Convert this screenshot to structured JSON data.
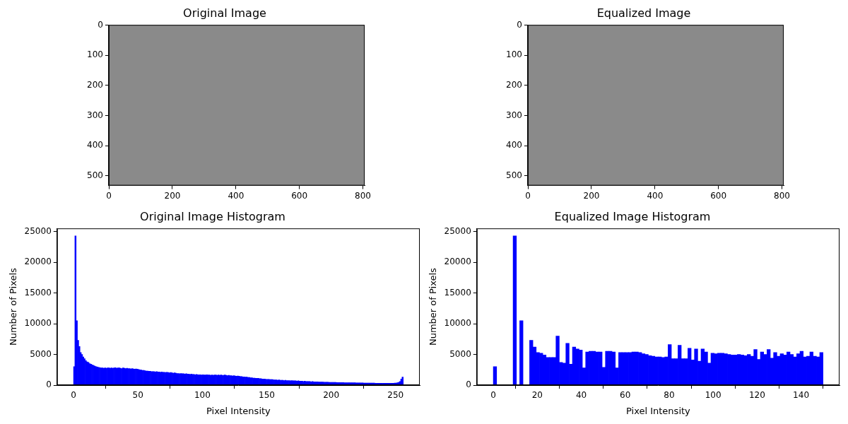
{
  "chart_data": [
    {
      "type": "image",
      "title": "Original Image",
      "xlim": [
        -0.5,
        805.5
      ],
      "xticks": [
        0,
        200,
        400,
        600,
        800
      ],
      "ylim": [
        532.5,
        -0.5
      ],
      "yticks": [
        0,
        100,
        200,
        300,
        400,
        500
      ],
      "grid": false
    },
    {
      "type": "image",
      "title": "Equalized Image",
      "xlim": [
        -0.5,
        805.5
      ],
      "xticks": [
        0,
        200,
        400,
        600,
        800
      ],
      "ylim": [
        532.5,
        -0.5
      ],
      "yticks": [
        0,
        100,
        200,
        300,
        400,
        500
      ],
      "grid": false
    },
    {
      "type": "histogram",
      "title": "Original Image Histogram",
      "x_label": "Pixel Intensity",
      "y_label": "Number of Pixels",
      "color": "#0000ff",
      "grid": false,
      "xlim": [
        -12.8,
        268.8
      ],
      "xticks": [
        0,
        50,
        100,
        150,
        200,
        250
      ],
      "ylim": [
        0,
        25515
      ],
      "yticks": [
        0,
        5000,
        10000,
        15000,
        20000,
        25000
      ],
      "bins": [
        0,
        1,
        2,
        3,
        4,
        5,
        6,
        7,
        8,
        9,
        10,
        11,
        12,
        13,
        14,
        15,
        16,
        17,
        18,
        19,
        20,
        21,
        22,
        23,
        24,
        25,
        26,
        27,
        28,
        29,
        30,
        31,
        32,
        33,
        34,
        35,
        36,
        37,
        38,
        39,
        40,
        41,
        42,
        43,
        44,
        45,
        46,
        47,
        48,
        49,
        50,
        51,
        52,
        53,
        54,
        55,
        56,
        57,
        58,
        59,
        60,
        61,
        62,
        63,
        64,
        65,
        66,
        67,
        68,
        69,
        70,
        71,
        72,
        73,
        74,
        75,
        76,
        77,
        78,
        79,
        80,
        81,
        82,
        83,
        84,
        85,
        86,
        87,
        88,
        89,
        90,
        91,
        92,
        93,
        94,
        95,
        96,
        97,
        98,
        99,
        100,
        101,
        102,
        103,
        104,
        105,
        106,
        107,
        108,
        109,
        110,
        111,
        112,
        113,
        114,
        115,
        116,
        117,
        118,
        119,
        120,
        121,
        122,
        123,
        124,
        125,
        126,
        127,
        128,
        129,
        130,
        131,
        132,
        133,
        134,
        135,
        136,
        137,
        138,
        139,
        140,
        141,
        142,
        143,
        144,
        145,
        146,
        147,
        148,
        149,
        150,
        151,
        152,
        153,
        154,
        155,
        156,
        157,
        158,
        159,
        160,
        161,
        162,
        163,
        164,
        165,
        166,
        167,
        168,
        169,
        170,
        171,
        172,
        173,
        174,
        175,
        176,
        177,
        178,
        179,
        180,
        181,
        182,
        183,
        184,
        185,
        186,
        187,
        188,
        189,
        190,
        191,
        192,
        193,
        194,
        195,
        196,
        197,
        198,
        199,
        200,
        201,
        202,
        203,
        204,
        205,
        206,
        207,
        208,
        209,
        210,
        211,
        212,
        213,
        214,
        215,
        216,
        217,
        218,
        219,
        220,
        221,
        222,
        223,
        224,
        225,
        226,
        227,
        228,
        229,
        230,
        231,
        232,
        233,
        234,
        235,
        236,
        237,
        238,
        239,
        240,
        241,
        242,
        243,
        244,
        245,
        246,
        247,
        248,
        249,
        250,
        251,
        252,
        253,
        254,
        255,
        256
      ],
      "values": [
        3000,
        24300,
        10500,
        7300,
        6300,
        5300,
        5000,
        4600,
        4300,
        4000,
        3800,
        3700,
        3500,
        3400,
        3300,
        3200,
        3100,
        3000,
        2950,
        2900,
        2850,
        2800,
        2800,
        2750,
        2800,
        2750,
        2800,
        2800,
        2750,
        2800,
        2750,
        2800,
        2850,
        2750,
        2800,
        2800,
        2750,
        2700,
        2800,
        2750,
        2700,
        2750,
        2700,
        2700,
        2650,
        2700,
        2650,
        2600,
        2650,
        2600,
        2550,
        2500,
        2450,
        2400,
        2400,
        2350,
        2300,
        2300,
        2250,
        2250,
        2200,
        2200,
        2200,
        2150,
        2200,
        2150,
        2150,
        2100,
        2150,
        2100,
        2100,
        2050,
        2100,
        2050,
        2000,
        2050,
        2000,
        1950,
        2000,
        1950,
        1900,
        1900,
        1850,
        1900,
        1850,
        1850,
        1800,
        1850,
        1800,
        1800,
        1750,
        1800,
        1750,
        1750,
        1700,
        1750,
        1700,
        1700,
        1700,
        1650,
        1700,
        1650,
        1650,
        1700,
        1650,
        1650,
        1600,
        1650,
        1600,
        1650,
        1650,
        1600,
        1650,
        1600,
        1650,
        1600,
        1600,
        1650,
        1600,
        1550,
        1600,
        1550,
        1550,
        1500,
        1550,
        1500,
        1450,
        1500,
        1450,
        1400,
        1400,
        1350,
        1350,
        1300,
        1300,
        1250,
        1250,
        1200,
        1200,
        1150,
        1150,
        1100,
        1100,
        1100,
        1050,
        1050,
        1000,
        1000,
        1000,
        950,
        950,
        950,
        900,
        900,
        900,
        850,
        850,
        850,
        800,
        850,
        800,
        800,
        800,
        750,
        800,
        750,
        750,
        750,
        700,
        750,
        700,
        700,
        700,
        650,
        700,
        650,
        650,
        650,
        600,
        650,
        600,
        600,
        600,
        600,
        550,
        600,
        550,
        550,
        550,
        550,
        500,
        500,
        500,
        500,
        480,
        480,
        470,
        470,
        460,
        460,
        450,
        450,
        440,
        440,
        430,
        430,
        420,
        420,
        410,
        410,
        400,
        400,
        400,
        390,
        390,
        390,
        380,
        380,
        380,
        370,
        370,
        370,
        360,
        360,
        360,
        350,
        350,
        350,
        340,
        340,
        340,
        330,
        330,
        330,
        320,
        320,
        320,
        310,
        310,
        310,
        300,
        300,
        300,
        300,
        300,
        300,
        310,
        310,
        320,
        330,
        350,
        380,
        450,
        600,
        1000,
        1300
      ]
    },
    {
      "type": "histogram",
      "title": "Equalized Image Histogram",
      "x_label": "Pixel Intensity",
      "y_label": "Number of Pixels",
      "color": "#0000ff",
      "grid": false,
      "xlim": [
        -7.5,
        157.5
      ],
      "xticks": [
        0,
        20,
        40,
        60,
        80,
        100,
        120,
        140
      ],
      "ylim": [
        0,
        25515
      ],
      "yticks": [
        0,
        5000,
        10000,
        15000,
        20000,
        25000
      ],
      "bins": [
        0,
        1.5,
        3,
        4.5,
        6,
        7.5,
        9,
        10.5,
        12,
        13.5,
        15,
        16.5,
        18,
        19.5,
        21,
        22.5,
        24,
        25.5,
        27,
        28.5,
        30,
        31.5,
        33,
        34.5,
        36,
        37.5,
        39,
        40.5,
        42,
        43.5,
        45,
        46.5,
        48,
        49.5,
        51,
        52.5,
        54,
        55.5,
        57,
        58.5,
        60,
        61.5,
        63,
        64.5,
        66,
        67.5,
        69,
        70.5,
        72,
        73.5,
        75,
        76.5,
        78,
        79.5,
        81,
        82.5,
        84,
        85.5,
        87,
        88.5,
        90,
        91.5,
        93,
        94.5,
        96,
        97.5,
        99,
        100.5,
        102,
        103.5,
        105,
        106.5,
        108,
        109.5,
        111,
        112.5,
        114,
        115.5,
        117,
        118.5,
        120,
        121.5,
        123,
        124.5,
        126,
        127.5,
        129,
        130.5,
        132,
        133.5,
        135,
        136.5,
        138,
        139.5,
        141,
        142.5,
        144,
        145.5,
        147,
        148.5,
        150
      ],
      "values": [
        3000,
        0,
        0,
        0,
        0,
        0,
        24300,
        0,
        10500,
        0,
        0,
        7300,
        6200,
        5300,
        5200,
        4900,
        4500,
        4500,
        4500,
        8000,
        3700,
        3600,
        6800,
        3400,
        6200,
        5900,
        5700,
        2800,
        5400,
        5500,
        5500,
        5400,
        5400,
        2900,
        5500,
        5500,
        5400,
        2800,
        5300,
        5300,
        5300,
        5300,
        5400,
        5400,
        5300,
        5100,
        5000,
        4800,
        4700,
        4600,
        4600,
        4500,
        4600,
        6600,
        4300,
        4300,
        6500,
        4300,
        4300,
        6000,
        4100,
        5900,
        3900,
        5900,
        5400,
        3600,
        5200,
        5100,
        5200,
        5200,
        5100,
        5000,
        4900,
        4900,
        5000,
        4900,
        4800,
        5000,
        4700,
        5800,
        4200,
        5400,
        5000,
        5800,
        4400,
        5300,
        4700,
        5100,
        4900,
        5400,
        5000,
        4600,
        5100,
        5500,
        4600,
        4700,
        5400,
        4700,
        4600,
        5300
      ]
    }
  ]
}
